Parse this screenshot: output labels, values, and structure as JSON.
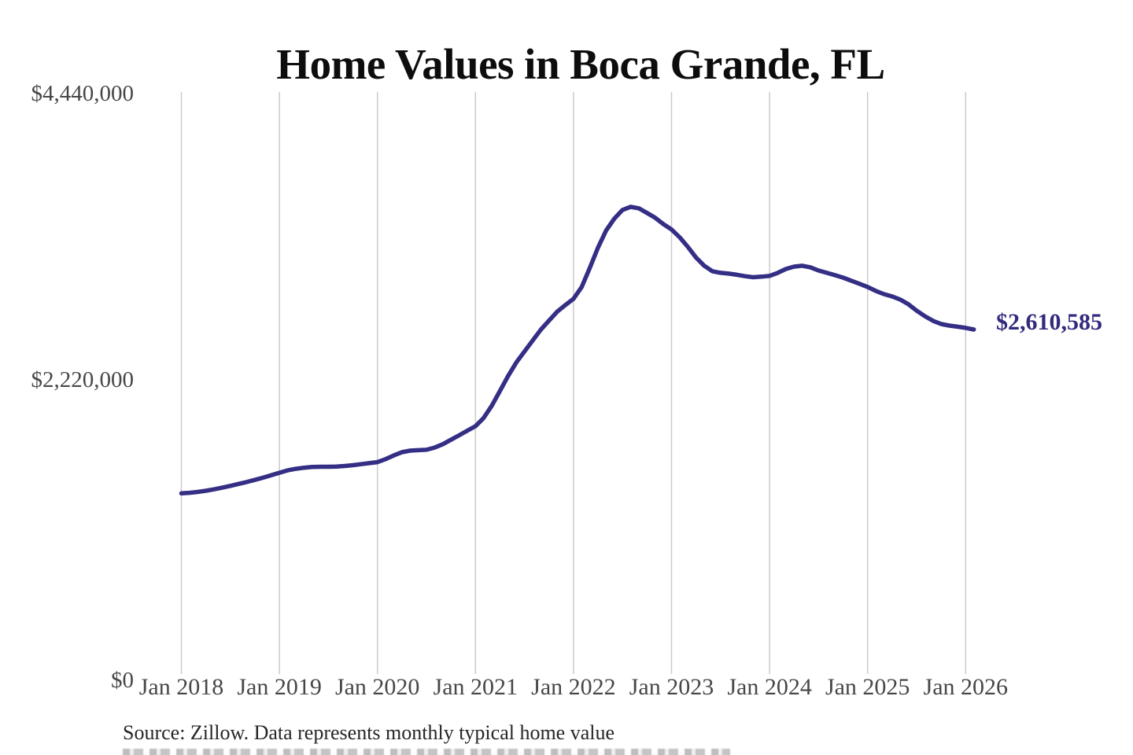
{
  "chart": {
    "title": "Home Values in Boca Grande, FL",
    "source_note": "Source: Zillow. Data represents monthly typical home value",
    "latest_value_label": "$2,610,585"
  },
  "chart_data": {
    "type": "line",
    "title": "Home Values in Boca Grande, FL",
    "source": "Source: Zillow. Data represents monthly typical home value",
    "xlabel": "",
    "ylabel": "",
    "ylim": [
      0,
      4440000
    ],
    "grid": "vertical-only",
    "legend": "none",
    "line_style": "smooth, rounded caps",
    "annotation": {
      "text": "$2,610,585",
      "value": 2610585,
      "position": "right-end-of-line"
    },
    "y_tick_labels_desc": [
      "$4,440,000",
      "$2,220,000",
      "$0"
    ],
    "y_tick_values_desc": [
      4440000,
      2220000,
      0
    ],
    "x_tick_labels": [
      "Jan 2018",
      "Jan 2019",
      "Jan 2020",
      "Jan 2021",
      "Jan 2022",
      "Jan 2023",
      "Jan 2024",
      "Jan 2025",
      "Jan 2026"
    ],
    "colors": {
      "line": "#342e85",
      "annotation": "#312a7e",
      "grid": "#cbcbcb",
      "title": "#0d0d0d",
      "tick_label": "#474747",
      "source": "#262626",
      "background": "#ffffff"
    },
    "x": [
      "2018-01",
      "2018-02",
      "2018-03",
      "2018-04",
      "2018-05",
      "2018-06",
      "2018-07",
      "2018-08",
      "2018-09",
      "2018-10",
      "2018-11",
      "2018-12",
      "2019-01",
      "2019-02",
      "2019-03",
      "2019-04",
      "2019-05",
      "2019-06",
      "2019-07",
      "2019-08",
      "2019-09",
      "2019-10",
      "2019-11",
      "2019-12",
      "2020-01",
      "2020-02",
      "2020-03",
      "2020-04",
      "2020-05",
      "2020-06",
      "2020-07",
      "2020-08",
      "2020-09",
      "2020-10",
      "2020-11",
      "2020-12",
      "2021-01",
      "2021-02",
      "2021-03",
      "2021-04",
      "2021-05",
      "2021-06",
      "2021-07",
      "2021-08",
      "2021-09",
      "2021-10",
      "2021-11",
      "2021-12",
      "2022-01",
      "2022-02",
      "2022-03",
      "2022-04",
      "2022-05",
      "2022-06",
      "2022-07",
      "2022-08",
      "2022-09",
      "2022-10",
      "2022-11",
      "2022-12",
      "2023-01",
      "2023-02",
      "2023-03",
      "2023-04",
      "2023-05",
      "2023-06",
      "2023-07",
      "2023-08",
      "2023-09",
      "2023-10",
      "2023-11",
      "2023-12",
      "2024-01",
      "2024-02",
      "2024-03",
      "2024-04",
      "2024-05",
      "2024-06",
      "2024-07",
      "2024-08",
      "2024-09",
      "2024-10",
      "2024-11",
      "2024-12",
      "2025-01",
      "2025-02",
      "2025-03",
      "2025-04",
      "2025-05",
      "2025-06",
      "2025-07",
      "2025-08",
      "2025-09",
      "2025-10",
      "2025-11",
      "2025-12",
      "2026-01",
      "2026-02"
    ],
    "values": [
      1340000,
      1344000,
      1351000,
      1360000,
      1371000,
      1384000,
      1398000,
      1413000,
      1428000,
      1444000,
      1461000,
      1480000,
      1500000,
      1518000,
      1530000,
      1539000,
      1544000,
      1546000,
      1546000,
      1548000,
      1552000,
      1558000,
      1566000,
      1574000,
      1582000,
      1605000,
      1634000,
      1659000,
      1671000,
      1675000,
      1678000,
      1695000,
      1721000,
      1755000,
      1790000,
      1826000,
      1861000,
      1925000,
      2020000,
      2135000,
      2250000,
      2355000,
      2440000,
      2525000,
      2610000,
      2680000,
      2748000,
      2800000,
      2849000,
      2940000,
      3090000,
      3245000,
      3379000,
      3470000,
      3538000,
      3562000,
      3550000,
      3514000,
      3477000,
      3428000,
      3386000,
      3325000,
      3251000,
      3169000,
      3105000,
      3062000,
      3050000,
      3044000,
      3035000,
      3024000,
      3016000,
      3020000,
      3026000,
      3050000,
      3080000,
      3098000,
      3105000,
      3093000,
      3068000,
      3050000,
      3032000,
      3013000,
      2989000,
      2965000,
      2940000,
      2910000,
      2885000,
      2867000,
      2843000,
      2806000,
      2757000,
      2714000,
      2678000,
      2653000,
      2641000,
      2632000,
      2623000,
      2610585
    ]
  }
}
